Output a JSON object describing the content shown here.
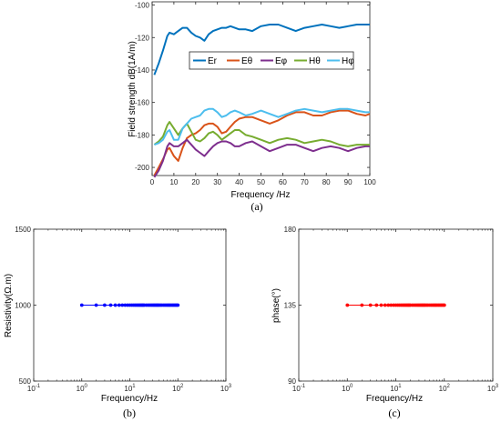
{
  "chart_data": [
    {
      "id": "a",
      "type": "line",
      "caption": "(a)",
      "xlabel": "Frequency /Hz",
      "ylabel": "Field strength dB(1A/m)",
      "xlim": [
        0,
        100
      ],
      "ylim": [
        -205,
        -98
      ],
      "xticks": [
        "0",
        "10",
        "20",
        "30",
        "40",
        "50",
        "60",
        "70",
        "80",
        "90",
        "100"
      ],
      "yticks": [
        "-200",
        "-180",
        "-160",
        "-140",
        "-120",
        "-100"
      ],
      "legend_position": "top-center",
      "x": [
        1,
        3,
        5,
        7,
        8,
        10,
        12,
        14,
        16,
        18,
        20,
        22,
        24,
        26,
        28,
        30,
        32,
        34,
        36,
        38,
        40,
        43,
        46,
        50,
        54,
        58,
        62,
        66,
        70,
        74,
        78,
        82,
        86,
        90,
        94,
        98,
        100
      ],
      "series": [
        {
          "name": "Er",
          "color": "#0072BD",
          "values": [
            -143,
            -136,
            -128,
            -119,
            -117,
            -118,
            -116,
            -114,
            -114,
            -117,
            -119,
            -120,
            -122,
            -118,
            -116,
            -115,
            -114,
            -114,
            -113,
            -114,
            -115,
            -115,
            -116,
            -113,
            -112,
            -112,
            -114,
            -116,
            -114,
            -113,
            -112,
            -113,
            -114,
            -113,
            -112,
            -112,
            -112
          ]
        },
        {
          "name": "Eθ",
          "color": "#D95319",
          "values": [
            -205,
            -200,
            -195,
            -189,
            -188,
            -193,
            -196,
            -188,
            -182,
            -180,
            -179,
            -177,
            -174,
            -173,
            -173,
            -175,
            -179,
            -178,
            -175,
            -172,
            -170,
            -169,
            -169,
            -171,
            -173,
            -171,
            -168,
            -166,
            -166,
            -168,
            -168,
            -166,
            -165,
            -165,
            -167,
            -168,
            -167
          ]
        },
        {
          "name": "Eφ",
          "color": "#7E2F8E",
          "values": [
            -206,
            -202,
            -196,
            -187,
            -185,
            -187,
            -187,
            -185,
            -183,
            -186,
            -189,
            -191,
            -193,
            -190,
            -187,
            -185,
            -184,
            -184,
            -185,
            -187,
            -187,
            -185,
            -184,
            -187,
            -190,
            -188,
            -186,
            -186,
            -188,
            -190,
            -188,
            -187,
            -188,
            -190,
            -188,
            -187,
            -187
          ]
        },
        {
          "name": "Hθ",
          "color": "#77AC30",
          "values": [
            -186,
            -184,
            -181,
            -174,
            -172,
            -176,
            -180,
            -176,
            -173,
            -178,
            -183,
            -184,
            -182,
            -179,
            -178,
            -180,
            -183,
            -181,
            -179,
            -177,
            -177,
            -180,
            -181,
            -183,
            -185,
            -183,
            -182,
            -183,
            -185,
            -184,
            -183,
            -184,
            -186,
            -187,
            -186,
            -186,
            -186
          ]
        },
        {
          "name": "Hφ",
          "color": "#4DBEEE",
          "values": [
            -186,
            -185,
            -183,
            -178,
            -177,
            -183,
            -183,
            -176,
            -173,
            -170,
            -169,
            -168,
            -165,
            -164,
            -164,
            -166,
            -169,
            -168,
            -166,
            -165,
            -166,
            -168,
            -167,
            -165,
            -167,
            -169,
            -167,
            -165,
            -164,
            -165,
            -166,
            -165,
            -164,
            -164,
            -165,
            -166,
            -166
          ]
        }
      ]
    },
    {
      "id": "b",
      "type": "scatter",
      "caption": "(b)",
      "xlabel": "Frequency/Hz",
      "ylabel": "Resistivity(Ω.m)",
      "xscale": "log",
      "xlim": [
        0.1,
        1000
      ],
      "ylim": [
        500,
        1500
      ],
      "xticks": [
        {
          "base": "10",
          "exp": "-1"
        },
        {
          "base": "10",
          "exp": "0"
        },
        {
          "base": "10",
          "exp": "1"
        },
        {
          "base": "10",
          "exp": "2"
        },
        {
          "base": "10",
          "exp": "3"
        }
      ],
      "yticks": [
        "500",
        "1000",
        "1500"
      ],
      "color": "#0000FF",
      "x": [
        1,
        2,
        3,
        4,
        5,
        6,
        7,
        8,
        9,
        10,
        11,
        12,
        13,
        14,
        15,
        16,
        17,
        18,
        19,
        20,
        22,
        24,
        26,
        28,
        30,
        32,
        34,
        36,
        38,
        40,
        43,
        46,
        50,
        54,
        58,
        62,
        66,
        70,
        75,
        80,
        85,
        90,
        95,
        100
      ],
      "values_constant": 1000
    },
    {
      "id": "c",
      "type": "scatter",
      "caption": "(c)",
      "xlabel": "Frequency/Hz",
      "ylabel": "phase(°)",
      "xscale": "log",
      "xlim": [
        0.1,
        1000
      ],
      "ylim": [
        90,
        180
      ],
      "xticks": [
        {
          "base": "10",
          "exp": "-1"
        },
        {
          "base": "10",
          "exp": "0"
        },
        {
          "base": "10",
          "exp": "1"
        },
        {
          "base": "10",
          "exp": "2"
        },
        {
          "base": "10",
          "exp": "3"
        }
      ],
      "yticks": [
        "90",
        "135",
        "180"
      ],
      "color": "#FF0000",
      "x": [
        1,
        2,
        3,
        4,
        5,
        6,
        7,
        8,
        9,
        10,
        11,
        12,
        13,
        14,
        15,
        16,
        17,
        18,
        19,
        20,
        22,
        24,
        26,
        28,
        30,
        32,
        34,
        36,
        38,
        40,
        43,
        46,
        50,
        54,
        58,
        62,
        66,
        70,
        75,
        80,
        85,
        90,
        95,
        100
      ],
      "values_constant": 135
    }
  ]
}
